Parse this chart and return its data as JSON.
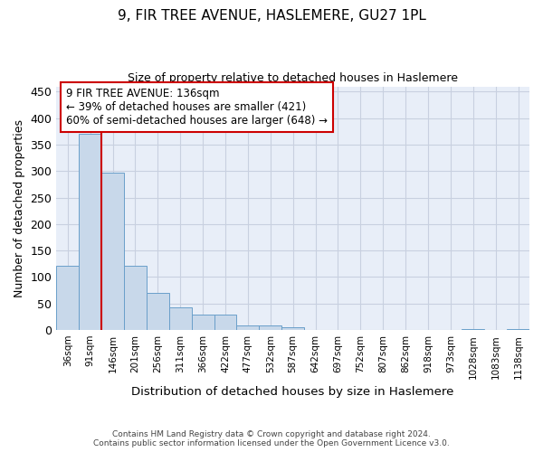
{
  "title": "9, FIR TREE AVENUE, HASLEMERE, GU27 1PL",
  "subtitle": "Size of property relative to detached houses in Haslemere",
  "xlabel": "Distribution of detached houses by size in Haslemere",
  "ylabel": "Number of detached properties",
  "bar_values": [
    122,
    370,
    297,
    122,
    70,
    43,
    29,
    29,
    8,
    8,
    6,
    0,
    0,
    0,
    0,
    0,
    0,
    0,
    2,
    0,
    2
  ],
  "bin_labels": [
    "36sqm",
    "91sqm",
    "146sqm",
    "201sqm",
    "256sqm",
    "311sqm",
    "366sqm",
    "422sqm",
    "477sqm",
    "532sqm",
    "587sqm",
    "642sqm",
    "697sqm",
    "752sqm",
    "807sqm",
    "862sqm",
    "918sqm",
    "973sqm",
    "1028sqm",
    "1083sqm",
    "1138sqm"
  ],
  "bar_color": "#c8d8ea",
  "bar_edge_color": "#6a9fca",
  "grid_color": "#c8d0e0",
  "background_color": "#e8eef8",
  "annotation_text_line1": "9 FIR TREE AVENUE: 136sqm",
  "annotation_text_line2": "← 39% of detached houses are smaller (421)",
  "annotation_text_line3": "60% of semi-detached houses are larger (648) →",
  "annotation_box_color": "#ffffff",
  "annotation_border_color": "#cc0000",
  "red_line_x": 1.5,
  "ylim": [
    0,
    460
  ],
  "yticks": [
    0,
    50,
    100,
    150,
    200,
    250,
    300,
    350,
    400,
    450
  ],
  "title_fontsize": 11,
  "subtitle_fontsize": 9,
  "footer_line1": "Contains HM Land Registry data © Crown copyright and database right 2024.",
  "footer_line2": "Contains public sector information licensed under the Open Government Licence v3.0."
}
